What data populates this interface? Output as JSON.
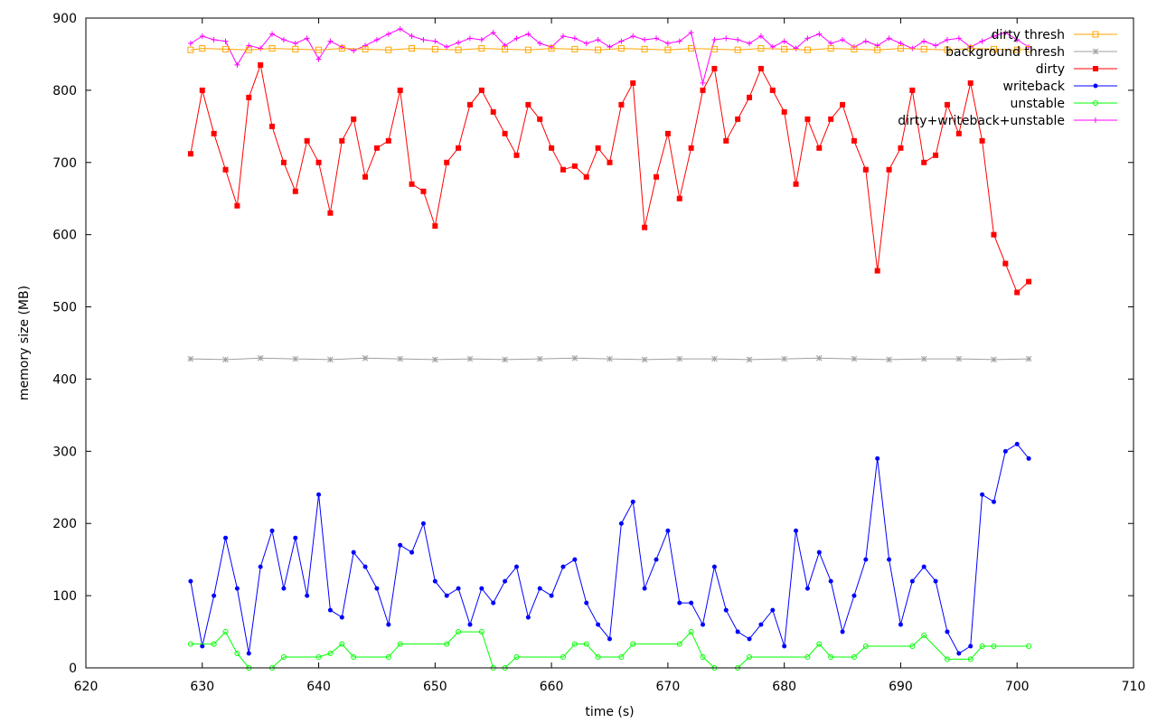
{
  "chart_data": {
    "type": "line",
    "title": "",
    "xlabel": "time (s)",
    "ylabel": "memory size (MB)",
    "xlim": [
      620,
      710
    ],
    "ylim": [
      0,
      900
    ],
    "xticks": [
      620,
      630,
      640,
      650,
      660,
      670,
      680,
      690,
      700,
      710
    ],
    "yticks": [
      0,
      100,
      200,
      300,
      400,
      500,
      600,
      700,
      800,
      900
    ],
    "grid": false,
    "legend_position": "top-right",
    "series": [
      {
        "name": "dirty thresh",
        "color": "#ffa500",
        "marker": "square-open",
        "x": [
          629,
          630,
          632,
          634,
          636,
          638,
          640,
          642,
          644,
          646,
          648,
          650,
          652,
          654,
          656,
          658,
          660,
          662,
          664,
          666,
          668,
          670,
          672,
          674,
          676,
          678,
          680,
          682,
          684,
          686,
          688,
          690,
          692,
          694,
          696,
          698,
          700,
          701
        ],
        "y": [
          856,
          858,
          857,
          856,
          858,
          857,
          856,
          858,
          857,
          856,
          858,
          857,
          856,
          858,
          857,
          856,
          858,
          857,
          856,
          858,
          857,
          856,
          858,
          857,
          856,
          858,
          857,
          856,
          858,
          857,
          856,
          858,
          857,
          856,
          858,
          857,
          856,
          857
        ]
      },
      {
        "name": "background thresh",
        "color": "#a0a0a0",
        "marker": "star",
        "x": [
          629,
          632,
          635,
          638,
          641,
          644,
          647,
          650,
          653,
          656,
          659,
          662,
          665,
          668,
          671,
          674,
          677,
          680,
          683,
          686,
          689,
          692,
          695,
          698,
          701
        ],
        "y": [
          428,
          427,
          429,
          428,
          427,
          429,
          428,
          427,
          428,
          427,
          428,
          429,
          428,
          427,
          428,
          428,
          427,
          428,
          429,
          428,
          427,
          428,
          428,
          427,
          428
        ]
      },
      {
        "name": "dirty",
        "color": "#ff0000",
        "marker": "square",
        "x": [
          629,
          630,
          631,
          632,
          633,
          634,
          635,
          636,
          637,
          638,
          639,
          640,
          641,
          642,
          643,
          644,
          645,
          646,
          647,
          648,
          649,
          650,
          651,
          652,
          653,
          654,
          655,
          656,
          657,
          658,
          659,
          660,
          661,
          662,
          663,
          664,
          665,
          666,
          667,
          668,
          669,
          670,
          671,
          672,
          673,
          674,
          675,
          676,
          677,
          678,
          679,
          680,
          681,
          682,
          683,
          684,
          685,
          686,
          687,
          688,
          689,
          690,
          691,
          692,
          693,
          694,
          695,
          696,
          697,
          698,
          699,
          700,
          701
        ],
        "y": [
          712,
          800,
          740,
          690,
          640,
          790,
          835,
          750,
          700,
          660,
          730,
          700,
          630,
          730,
          760,
          680,
          720,
          730,
          800,
          670,
          660,
          612,
          700,
          720,
          780,
          800,
          770,
          740,
          710,
          780,
          760,
          720,
          690,
          695,
          680,
          720,
          700,
          780,
          810,
          610,
          680,
          740,
          650,
          720,
          800,
          830,
          730,
          760,
          790,
          830,
          800,
          770,
          670,
          760,
          720,
          760,
          780,
          730,
          690,
          550,
          690,
          720,
          800,
          700,
          710,
          780,
          740,
          810,
          730,
          600,
          560,
          520,
          535
        ]
      },
      {
        "name": "writeback",
        "color": "#0000ff",
        "marker": "circle",
        "x": [
          629,
          630,
          631,
          632,
          633,
          634,
          635,
          636,
          637,
          638,
          639,
          640,
          641,
          642,
          643,
          644,
          645,
          646,
          647,
          648,
          649,
          650,
          651,
          652,
          653,
          654,
          655,
          656,
          657,
          658,
          659,
          660,
          661,
          662,
          663,
          664,
          665,
          666,
          667,
          668,
          669,
          670,
          671,
          672,
          673,
          674,
          675,
          676,
          677,
          678,
          679,
          680,
          681,
          682,
          683,
          684,
          685,
          686,
          687,
          688,
          689,
          690,
          691,
          692,
          693,
          694,
          695,
          696,
          697,
          698,
          699,
          700,
          701
        ],
        "y": [
          120,
          30,
          100,
          180,
          110,
          20,
          140,
          190,
          110,
          180,
          100,
          240,
          80,
          70,
          160,
          140,
          110,
          60,
          170,
          160,
          200,
          120,
          100,
          110,
          60,
          110,
          90,
          120,
          140,
          70,
          110,
          100,
          140,
          150,
          90,
          60,
          40,
          200,
          230,
          110,
          150,
          190,
          90,
          90,
          60,
          140,
          80,
          50,
          40,
          60,
          80,
          30,
          190,
          110,
          160,
          120,
          50,
          100,
          150,
          290,
          150,
          60,
          120,
          140,
          120,
          50,
          20,
          30,
          240,
          230,
          300,
          310,
          290
        ]
      },
      {
        "name": "unstable",
        "color": "#00ff00",
        "marker": "circle-open",
        "x": [
          629,
          631,
          632,
          633,
          634,
          636,
          637,
          640,
          641,
          642,
          643,
          646,
          647,
          651,
          652,
          654,
          655,
          656,
          657,
          661,
          662,
          663,
          664,
          666,
          667,
          671,
          672,
          673,
          674,
          676,
          677,
          682,
          683,
          684,
          686,
          687,
          691,
          692,
          694,
          696,
          697,
          698,
          701
        ],
        "y": [
          33,
          33,
          50,
          20,
          0,
          0,
          15,
          15,
          20,
          33,
          15,
          15,
          33,
          33,
          50,
          50,
          0,
          0,
          15,
          15,
          33,
          33,
          15,
          15,
          33,
          33,
          50,
          15,
          0,
          0,
          15,
          15,
          33,
          15,
          15,
          30,
          30,
          45,
          12,
          12,
          30,
          30,
          30
        ]
      },
      {
        "name": "dirty+writeback+unstable",
        "color": "#ff00ff",
        "marker": "plus",
        "x": [
          629,
          630,
          631,
          632,
          633,
          634,
          635,
          636,
          637,
          638,
          639,
          640,
          641,
          642,
          643,
          644,
          645,
          646,
          647,
          648,
          649,
          650,
          651,
          652,
          653,
          654,
          655,
          656,
          657,
          658,
          659,
          660,
          661,
          662,
          663,
          664,
          665,
          666,
          667,
          668,
          669,
          670,
          671,
          672,
          673,
          674,
          675,
          676,
          677,
          678,
          679,
          680,
          681,
          682,
          683,
          684,
          685,
          686,
          687,
          688,
          689,
          690,
          691,
          692,
          693,
          694,
          695,
          696,
          697,
          698,
          699,
          700,
          701
        ],
        "y": [
          865,
          875,
          870,
          868,
          835,
          862,
          858,
          878,
          870,
          865,
          872,
          843,
          868,
          860,
          855,
          862,
          870,
          878,
          885,
          875,
          870,
          868,
          860,
          866,
          872,
          870,
          880,
          862,
          872,
          878,
          865,
          860,
          875,
          872,
          865,
          870,
          860,
          868,
          875,
          870,
          872,
          865,
          868,
          880,
          810,
          870,
          872,
          870,
          865,
          875,
          860,
          868,
          858,
          872,
          878,
          865,
          870,
          860,
          868,
          862,
          872,
          865,
          858,
          868,
          862,
          870,
          872,
          860,
          868,
          875,
          880,
          870,
          860
        ]
      }
    ]
  }
}
